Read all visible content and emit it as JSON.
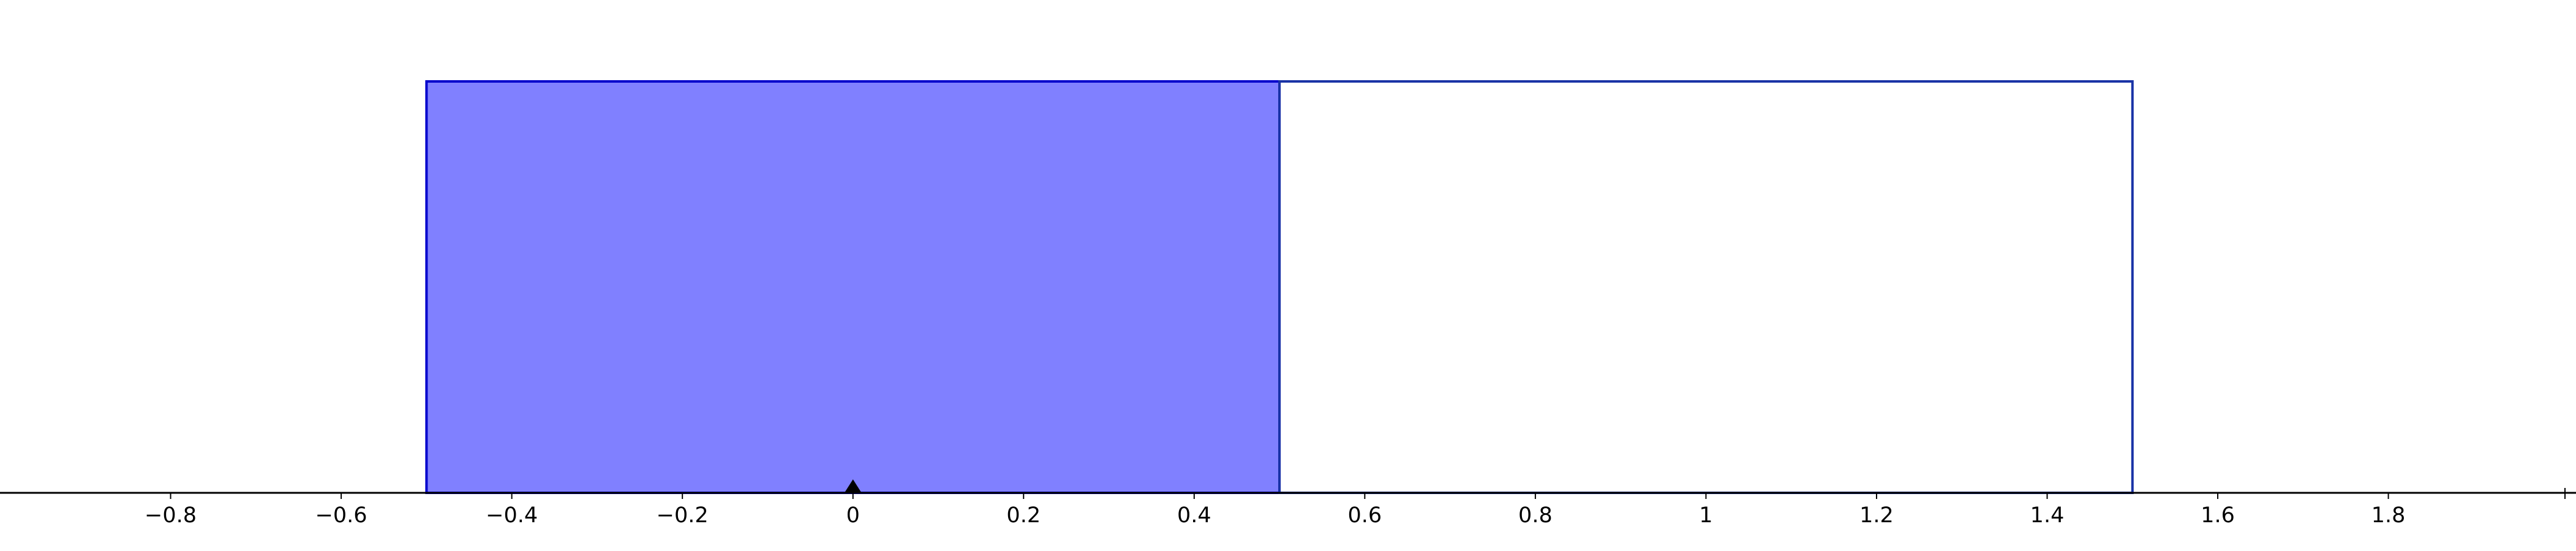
{
  "chart_data": {
    "type": "bar",
    "title": "",
    "xlabel": "",
    "ylabel": "",
    "xlim": [
      -1.0,
      2.02
    ],
    "ylim": [
      0,
      1.0
    ],
    "grid": false,
    "x_ticks": [
      "−0.8",
      "−0.6",
      "−0.4",
      "−0.2",
      "0",
      "0.2",
      "0.4",
      "0.6",
      "0.8",
      "1",
      "1.2",
      "1.4",
      "1.6",
      "1.8"
    ],
    "x_tick_values": [
      -0.8,
      -0.6,
      -0.4,
      -0.2,
      0,
      0.2,
      0.4,
      0.6,
      0.8,
      1,
      1.2,
      1.4,
      1.6,
      1.8
    ],
    "bars": [
      {
        "x_start": -0.5,
        "x_end": 0.5,
        "value": 1,
        "filled": true
      },
      {
        "x_start": 0.5,
        "x_end": 1.5,
        "value": 1,
        "filled": false
      }
    ],
    "marker": {
      "x": 0,
      "shape": "triangle"
    },
    "colors": {
      "filled_bar": "#8080ff",
      "filled_bar_edge": "#0000cc",
      "outline_bar_edge": "#1a33a6",
      "axis": "#000000",
      "marker": "#000000"
    }
  }
}
